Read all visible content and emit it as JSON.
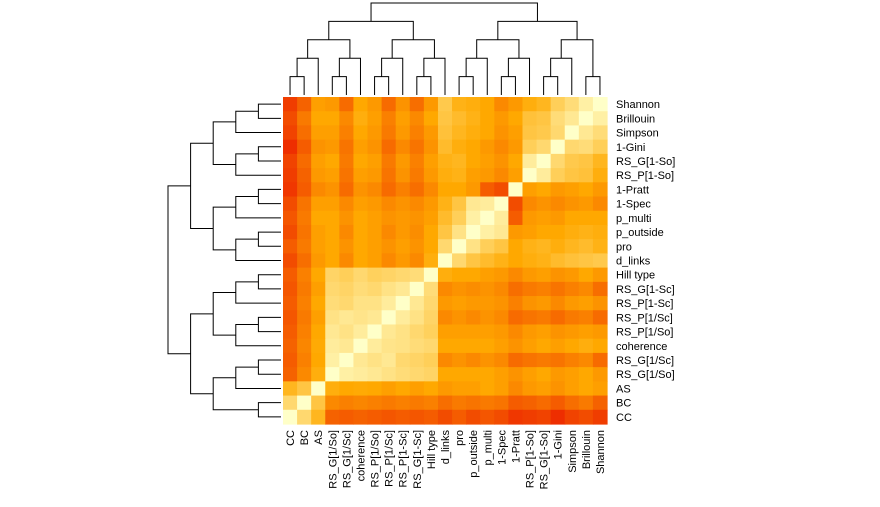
{
  "chart_data": {
    "type": "heatmap",
    "title": "",
    "xlabel": "",
    "ylabel": "",
    "colormap": "heat",
    "color_low": "#e80000",
    "color_high": "#ffffc8",
    "rows": [
      "Shannon",
      "Brillouin",
      "Simpson",
      "1-Gini",
      "RS_G[1-So]",
      "RS_P[1-So]",
      "1-Pratt",
      "1-Spec",
      "p_multi",
      "p_outside",
      "pro",
      "d_links",
      "Hill type",
      "RS_G[1-Sc]",
      "RS_P[1-Sc]",
      "RS_P[1/Sc]",
      "RS_P[1/So]",
      "coherence",
      "RS_G[1/Sc]",
      "RS_G[1/So]",
      "AS",
      "BC",
      "CC"
    ],
    "columns": [
      "CC",
      "BC",
      "AS",
      "RS_G[1/So]",
      "RS_G[1/Sc]",
      "coherence",
      "RS_P[1/So]",
      "RS_P[1/Sc]",
      "RS_P[1-Sc]",
      "RS_G[1-Sc]",
      "Hill type",
      "d_links",
      "pro",
      "p_outside",
      "p_multi",
      "1-Spec",
      "1-Pratt",
      "RS_P[1-So]",
      "RS_G[1-So]",
      "1-Gini",
      "Simpson",
      "Brillouin",
      "Shannon"
    ],
    "values": [
      [
        0.2,
        0.32,
        0.52,
        0.5,
        0.35,
        0.55,
        0.5,
        0.35,
        0.48,
        0.36,
        0.5,
        0.72,
        0.6,
        0.58,
        0.55,
        0.45,
        0.5,
        0.58,
        0.62,
        0.75,
        0.82,
        0.92,
        1.0
      ],
      [
        0.25,
        0.4,
        0.55,
        0.55,
        0.45,
        0.58,
        0.52,
        0.42,
        0.52,
        0.45,
        0.55,
        0.7,
        0.65,
        0.6,
        0.55,
        0.5,
        0.55,
        0.68,
        0.7,
        0.82,
        0.88,
        1.0,
        0.92
      ],
      [
        0.22,
        0.36,
        0.52,
        0.52,
        0.42,
        0.55,
        0.5,
        0.4,
        0.5,
        0.42,
        0.5,
        0.68,
        0.62,
        0.58,
        0.55,
        0.48,
        0.52,
        0.7,
        0.72,
        0.8,
        1.0,
        0.88,
        0.82
      ],
      [
        0.15,
        0.3,
        0.48,
        0.5,
        0.38,
        0.52,
        0.48,
        0.35,
        0.45,
        0.38,
        0.48,
        0.65,
        0.58,
        0.55,
        0.5,
        0.45,
        0.5,
        0.75,
        0.8,
        1.0,
        0.8,
        0.82,
        0.75
      ],
      [
        0.22,
        0.35,
        0.52,
        0.55,
        0.4,
        0.55,
        0.52,
        0.4,
        0.5,
        0.42,
        0.52,
        0.6,
        0.62,
        0.55,
        0.52,
        0.48,
        0.55,
        0.9,
        1.0,
        0.8,
        0.72,
        0.7,
        0.62
      ],
      [
        0.2,
        0.32,
        0.5,
        0.52,
        0.38,
        0.52,
        0.5,
        0.38,
        0.48,
        0.4,
        0.5,
        0.58,
        0.6,
        0.52,
        0.5,
        0.45,
        0.52,
        1.0,
        0.9,
        0.75,
        0.7,
        0.68,
        0.58
      ],
      [
        0.18,
        0.3,
        0.45,
        0.48,
        0.35,
        0.48,
        0.45,
        0.35,
        0.42,
        0.36,
        0.45,
        0.55,
        0.55,
        0.5,
        0.3,
        0.25,
        1.0,
        0.52,
        0.55,
        0.5,
        0.52,
        0.55,
        0.5
      ],
      [
        0.25,
        0.38,
        0.52,
        0.52,
        0.45,
        0.52,
        0.5,
        0.45,
        0.48,
        0.45,
        0.5,
        0.6,
        0.7,
        0.88,
        0.9,
        1.0,
        0.25,
        0.45,
        0.48,
        0.45,
        0.48,
        0.5,
        0.45
      ],
      [
        0.28,
        0.4,
        0.55,
        0.55,
        0.48,
        0.55,
        0.52,
        0.48,
        0.5,
        0.48,
        0.52,
        0.65,
        0.75,
        0.92,
        1.0,
        0.9,
        0.3,
        0.5,
        0.52,
        0.5,
        0.55,
        0.55,
        0.55
      ],
      [
        0.25,
        0.38,
        0.52,
        0.55,
        0.45,
        0.55,
        0.52,
        0.45,
        0.5,
        0.46,
        0.55,
        0.7,
        0.85,
        1.0,
        0.92,
        0.88,
        0.5,
        0.52,
        0.55,
        0.55,
        0.58,
        0.6,
        0.58
      ],
      [
        0.3,
        0.4,
        0.52,
        0.55,
        0.48,
        0.55,
        0.52,
        0.48,
        0.52,
        0.48,
        0.55,
        0.8,
        1.0,
        0.85,
        0.75,
        0.7,
        0.55,
        0.6,
        0.62,
        0.58,
        0.62,
        0.65,
        0.6
      ],
      [
        0.25,
        0.36,
        0.5,
        0.55,
        0.45,
        0.55,
        0.52,
        0.45,
        0.5,
        0.45,
        0.58,
        1.0,
        0.8,
        0.7,
        0.65,
        0.6,
        0.55,
        0.58,
        0.6,
        0.65,
        0.68,
        0.7,
        0.72
      ],
      [
        0.3,
        0.42,
        0.55,
        0.78,
        0.75,
        0.8,
        0.76,
        0.78,
        0.8,
        0.82,
        1.0,
        0.58,
        0.55,
        0.55,
        0.52,
        0.5,
        0.45,
        0.5,
        0.52,
        0.48,
        0.5,
        0.55,
        0.5
      ],
      [
        0.28,
        0.4,
        0.52,
        0.8,
        0.78,
        0.82,
        0.8,
        0.85,
        0.88,
        1.0,
        0.82,
        0.45,
        0.48,
        0.46,
        0.48,
        0.45,
        0.36,
        0.4,
        0.42,
        0.38,
        0.42,
        0.45,
        0.36
      ],
      [
        0.3,
        0.42,
        0.55,
        0.82,
        0.8,
        0.85,
        0.85,
        0.9,
        1.0,
        0.88,
        0.8,
        0.5,
        0.52,
        0.5,
        0.5,
        0.48,
        0.42,
        0.48,
        0.5,
        0.45,
        0.5,
        0.52,
        0.48
      ],
      [
        0.28,
        0.4,
        0.52,
        0.85,
        0.88,
        0.86,
        0.88,
        1.0,
        0.9,
        0.85,
        0.78,
        0.45,
        0.48,
        0.45,
        0.48,
        0.45,
        0.35,
        0.38,
        0.4,
        0.35,
        0.4,
        0.42,
        0.35
      ],
      [
        0.3,
        0.42,
        0.55,
        0.88,
        0.85,
        0.9,
        1.0,
        0.88,
        0.85,
        0.8,
        0.76,
        0.52,
        0.52,
        0.52,
        0.52,
        0.5,
        0.45,
        0.5,
        0.52,
        0.48,
        0.5,
        0.52,
        0.5
      ],
      [
        0.32,
        0.44,
        0.56,
        0.9,
        0.88,
        1.0,
        0.9,
        0.86,
        0.85,
        0.82,
        0.8,
        0.55,
        0.55,
        0.55,
        0.55,
        0.52,
        0.48,
        0.52,
        0.55,
        0.52,
        0.55,
        0.58,
        0.55
      ],
      [
        0.3,
        0.42,
        0.55,
        0.92,
        1.0,
        0.88,
        0.85,
        0.88,
        0.8,
        0.78,
        0.75,
        0.45,
        0.48,
        0.45,
        0.48,
        0.45,
        0.35,
        0.38,
        0.4,
        0.38,
        0.42,
        0.45,
        0.35
      ],
      [
        0.32,
        0.45,
        0.58,
        1.0,
        0.92,
        0.9,
        0.88,
        0.85,
        0.82,
        0.8,
        0.78,
        0.55,
        0.55,
        0.55,
        0.55,
        0.52,
        0.48,
        0.52,
        0.55,
        0.5,
        0.52,
        0.55,
        0.5
      ],
      [
        0.62,
        0.7,
        1.0,
        0.58,
        0.55,
        0.56,
        0.55,
        0.52,
        0.55,
        0.52,
        0.55,
        0.5,
        0.52,
        0.52,
        0.55,
        0.52,
        0.45,
        0.5,
        0.52,
        0.48,
        0.52,
        0.55,
        0.52
      ],
      [
        0.8,
        1.0,
        0.7,
        0.45,
        0.42,
        0.44,
        0.42,
        0.4,
        0.42,
        0.4,
        0.42,
        0.36,
        0.4,
        0.38,
        0.4,
        0.38,
        0.3,
        0.32,
        0.35,
        0.3,
        0.36,
        0.4,
        0.32
      ],
      [
        1.0,
        0.8,
        0.62,
        0.32,
        0.3,
        0.32,
        0.3,
        0.28,
        0.3,
        0.28,
        0.3,
        0.25,
        0.3,
        0.25,
        0.28,
        0.25,
        0.18,
        0.2,
        0.22,
        0.15,
        0.22,
        0.25,
        0.2
      ]
    ]
  }
}
